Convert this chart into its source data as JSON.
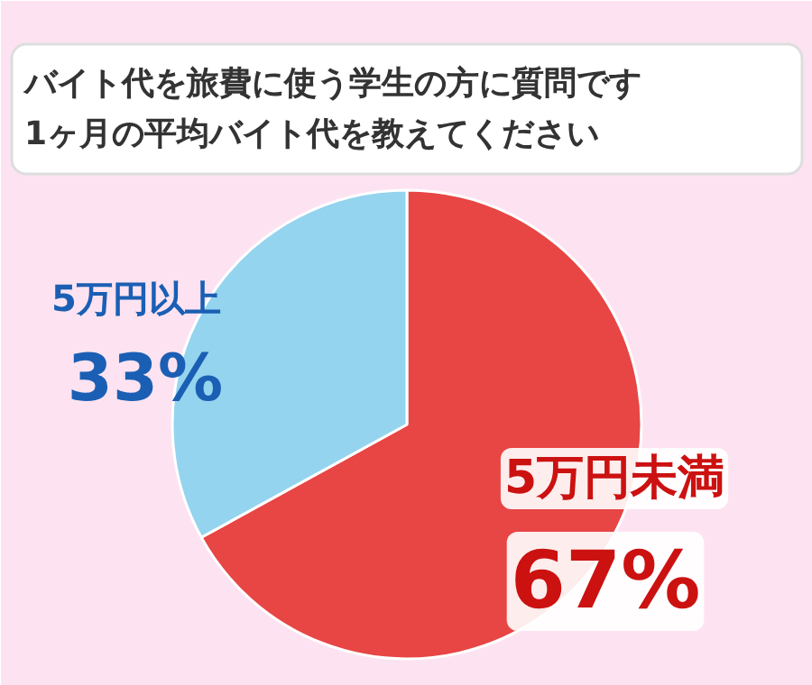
{
  "chart_data": {
    "type": "pie",
    "title": "バイト代を旅費に使う学生の方に質問です\n1ヶ月の平均バイト代を教えてください",
    "categories": [
      "5万円未満",
      "5万円以上"
    ],
    "values": [
      67,
      33
    ],
    "colors": [
      "#e84545",
      "#94d4ee"
    ],
    "value_labels": [
      "67%",
      "33%"
    ]
  }
}
